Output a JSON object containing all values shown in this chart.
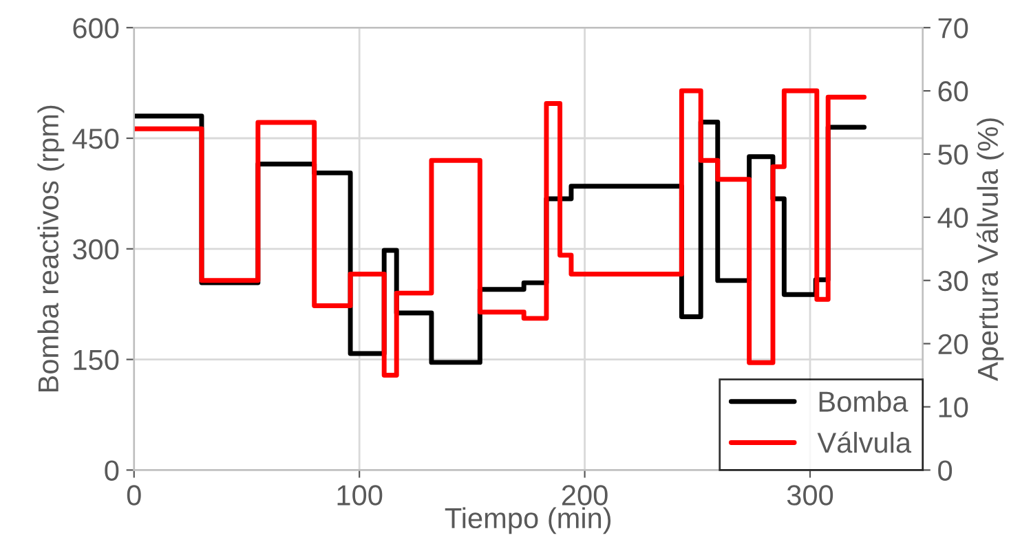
{
  "chart_data": {
    "type": "step",
    "xlabel": "Tiempo (min)",
    "ylabel": "Bomba reactivos (rpm)",
    "y2label": "Apertura Válvula (%)",
    "xlim": [
      0,
      350
    ],
    "xticks": [
      0,
      100,
      200,
      300
    ],
    "ylim": [
      0,
      600
    ],
    "yticks": [
      0,
      150,
      300,
      450,
      600
    ],
    "y2lim": [
      0,
      70
    ],
    "y2ticks": [
      0,
      10,
      20,
      30,
      40,
      50,
      60,
      70
    ],
    "grid": true,
    "legend": "bottom right",
    "series": [
      {
        "name": "Bomba",
        "color": "#000000",
        "x": [
          0,
          30,
          55,
          80,
          96,
          111,
          116.5,
          132,
          153.5,
          173,
          183,
          194,
          243,
          251.5,
          259,
          273,
          283.5,
          288.5,
          302.5,
          308,
          324
        ],
        "values": [
          480,
          254,
          415,
          403,
          158,
          298,
          213,
          146,
          245,
          254,
          368,
          385,
          208,
          472,
          257,
          425,
          368,
          238,
          258,
          465,
          465
        ]
      },
      {
        "name": "Válvula",
        "color": "#ff0000",
        "axis": "y2",
        "x": [
          0,
          30,
          55,
          80,
          96,
          111,
          116.5,
          132,
          153.5,
          173,
          183,
          189,
          194,
          243,
          251.5,
          259,
          273,
          283.5,
          288.5,
          303,
          308,
          324
        ],
        "values": [
          54,
          30,
          55,
          26,
          31,
          15,
          28,
          49,
          25,
          24,
          58,
          34,
          31,
          60,
          49,
          46,
          17,
          48,
          60,
          27,
          59,
          59
        ]
      }
    ]
  }
}
